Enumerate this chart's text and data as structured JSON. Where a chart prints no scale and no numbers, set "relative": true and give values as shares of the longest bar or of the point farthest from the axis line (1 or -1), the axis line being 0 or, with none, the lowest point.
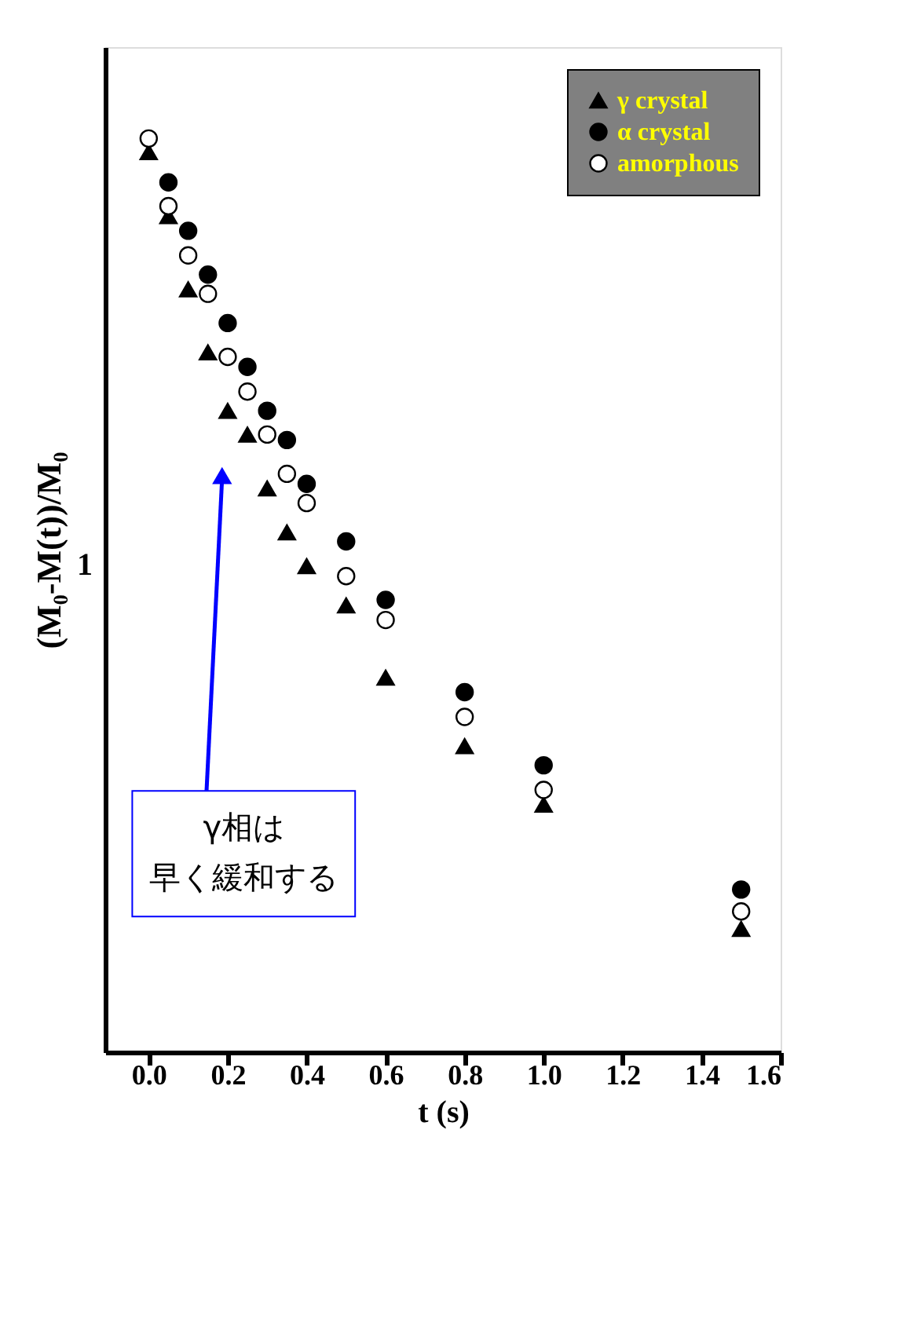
{
  "chart_data": {
    "type": "scatter",
    "xlabel": "t (s)",
    "ylabel": "(M₀-M(t))/M₀",
    "x": [
      0,
      0.05,
      0.1,
      0.15,
      0.2,
      0.25,
      0.3,
      0.35,
      0.4,
      0.5,
      0.6,
      0.8,
      1.0,
      1.5
    ],
    "series": [
      {
        "name": "γ crystal",
        "color": "#000000",
        "marker": "triangle",
        "values": [
          0.985,
          0.915,
          0.835,
          0.766,
          0.702,
          0.676,
          0.617,
          0.569,
          0.532,
          0.489,
          0.41,
          0.335,
          0.271,
          0.135
        ]
      },
      {
        "name": "α crystal",
        "color": "#000000",
        "marker": "circle",
        "values": [
          null,
          0.952,
          0.899,
          0.851,
          0.798,
          0.75,
          0.702,
          0.67,
          0.622,
          0.559,
          0.495,
          0.394,
          0.314,
          0.178
        ]
      },
      {
        "name": "amorphous",
        "color": "#ffffff",
        "marker": "circle",
        "values": [
          1,
          0.926,
          0.872,
          0.83,
          0.761,
          0.723,
          0.676,
          0.633,
          0.601,
          0.521,
          0.473,
          0.367,
          0.287,
          0.154
        ]
      }
    ],
    "relative": true,
    "xlim": [
      -0.11,
      1.6
    ],
    "xticks": [
      {
        "value": 0,
        "label": "0.0"
      },
      0.2,
      0.4,
      0.6,
      0.8,
      {
        "value": 1,
        "label": "1.0"
      },
      1.2,
      1.4,
      1.6
    ],
    "grid": false,
    "legend": "top right",
    "annotations": [
      "1",
      "γ相は",
      "早く緩和する"
    ]
  }
}
